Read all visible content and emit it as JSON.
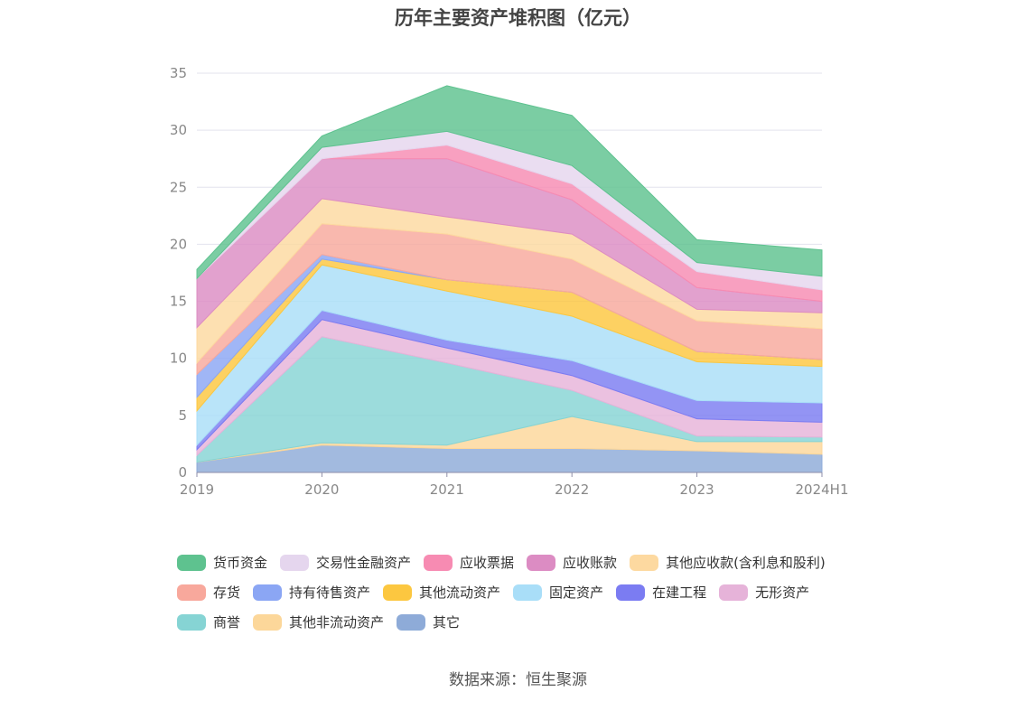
{
  "chart_data": {
    "type": "area",
    "stacked": true,
    "title": "历年主要资产堆积图（亿元）",
    "categories": [
      "2019",
      "2020",
      "2021",
      "2022",
      "2023",
      "2024H1"
    ],
    "ylim": [
      0,
      35
    ],
    "yticks": [
      0,
      5,
      10,
      15,
      20,
      25,
      30,
      35
    ],
    "grid": true,
    "legend_position": "bottom",
    "series": [
      {
        "name": "其它",
        "color": "#8eabd8",
        "values": [
          0.9,
          2.4,
          2.1,
          2.1,
          1.9,
          1.6
        ]
      },
      {
        "name": "其他非流动资产",
        "color": "#fcd79a",
        "values": [
          0.0,
          0.2,
          0.3,
          2.8,
          0.8,
          1.1
        ]
      },
      {
        "name": "商誉",
        "color": "#86d4d4",
        "values": [
          0.6,
          9.3,
          7.2,
          2.3,
          0.5,
          0.4
        ]
      },
      {
        "name": "无形资产",
        "color": "#e6b3d9",
        "values": [
          0.5,
          1.5,
          1.3,
          1.3,
          1.5,
          1.3
        ]
      },
      {
        "name": "在建工程",
        "color": "#7b7cf2",
        "values": [
          0.4,
          0.8,
          0.7,
          1.3,
          1.6,
          1.7
        ]
      },
      {
        "name": "固定资产",
        "color": "#a9def8",
        "values": [
          3.0,
          4.0,
          4.3,
          3.9,
          3.4,
          3.2
        ]
      },
      {
        "name": "其他流动资产",
        "color": "#fcc740",
        "values": [
          1.2,
          0.5,
          1.0,
          2.1,
          0.9,
          0.6
        ]
      },
      {
        "name": "持有待售资产",
        "color": "#8ba6f4",
        "values": [
          2.0,
          0.4,
          0.0,
          0.0,
          0.0,
          0.0
        ]
      },
      {
        "name": "存货",
        "color": "#f8a89c",
        "values": [
          1.0,
          2.7,
          4.0,
          2.9,
          2.7,
          2.7
        ]
      },
      {
        "name": "其他应收款(含利息和股利)",
        "color": "#fdd9a0",
        "values": [
          3.1,
          2.2,
          1.5,
          2.2,
          1.0,
          1.4
        ]
      },
      {
        "name": "应收账款",
        "color": "#dc8cc3",
        "values": [
          4.3,
          3.5,
          5.1,
          3.0,
          1.9,
          1.0
        ]
      },
      {
        "name": "应收票据",
        "color": "#f78bb2",
        "values": [
          0.0,
          0.0,
          1.2,
          1.4,
          1.4,
          1.0
        ]
      },
      {
        "name": "交易性金融资产",
        "color": "#e5d6ee",
        "values": [
          0.0,
          1.0,
          1.2,
          1.6,
          0.8,
          1.2
        ]
      },
      {
        "name": "货币资金",
        "color": "#5ec28f",
        "values": [
          0.8,
          1.0,
          4.0,
          4.4,
          2.0,
          2.3
        ]
      }
    ]
  },
  "legend": {
    "rows": [
      [
        {
          "name": "货币资金",
          "color": "#5ec28f"
        },
        {
          "name": "交易性金融资产",
          "color": "#e5d6ee"
        },
        {
          "name": "应收票据",
          "color": "#f78bb2"
        },
        {
          "name": "应收账款",
          "color": "#dc8cc3"
        },
        {
          "name": "其他应收款(含利息和股利)",
          "color": "#fdd9a0"
        }
      ],
      [
        {
          "name": "存货",
          "color": "#f8a89c"
        },
        {
          "name": "持有待售资产",
          "color": "#8ba6f4"
        },
        {
          "name": "其他流动资产",
          "color": "#fcc740"
        },
        {
          "name": "固定资产",
          "color": "#a9def8"
        },
        {
          "name": "在建工程",
          "color": "#7b7cf2"
        },
        {
          "name": "无形资产",
          "color": "#e6b3d9"
        }
      ],
      [
        {
          "name": "商誉",
          "color": "#86d4d4"
        },
        {
          "name": "其他非流动资产",
          "color": "#fcd79a"
        },
        {
          "name": "其它",
          "color": "#8eabd8"
        }
      ]
    ]
  },
  "footer": {
    "source": "数据来源：恒生聚源"
  }
}
